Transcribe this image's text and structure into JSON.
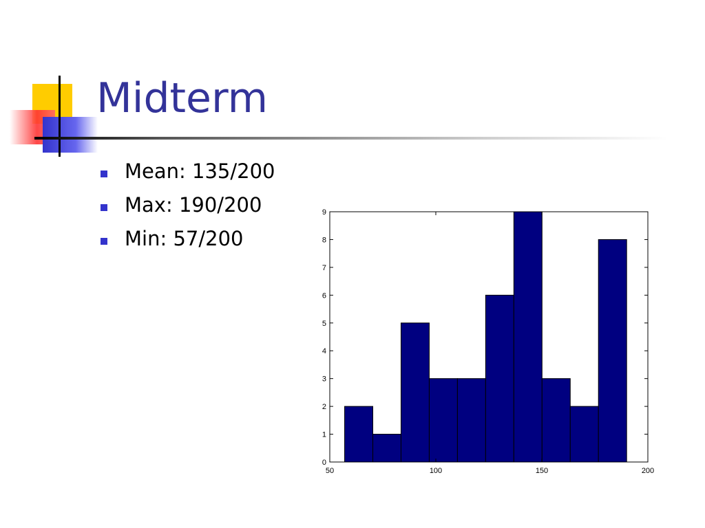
{
  "title": "Midterm",
  "bullets": [
    "Mean: 135/200",
    "Max: 190/200",
    "Min: 57/200"
  ],
  "chart_data": {
    "type": "histogram",
    "bins": [
      57,
      70.3,
      83.6,
      96.9,
      110.2,
      123.5,
      136.8,
      150.1,
      163.4,
      176.7,
      190
    ],
    "values": [
      2,
      1,
      5,
      3,
      3,
      6,
      9,
      3,
      2,
      8
    ],
    "color": "#000080",
    "xlim": [
      50,
      200
    ],
    "xticks": [
      50,
      100,
      150,
      200
    ],
    "ylim": [
      0,
      9
    ],
    "yticks": [
      0,
      1,
      2,
      3,
      4,
      5,
      6,
      7,
      8,
      9
    ]
  }
}
